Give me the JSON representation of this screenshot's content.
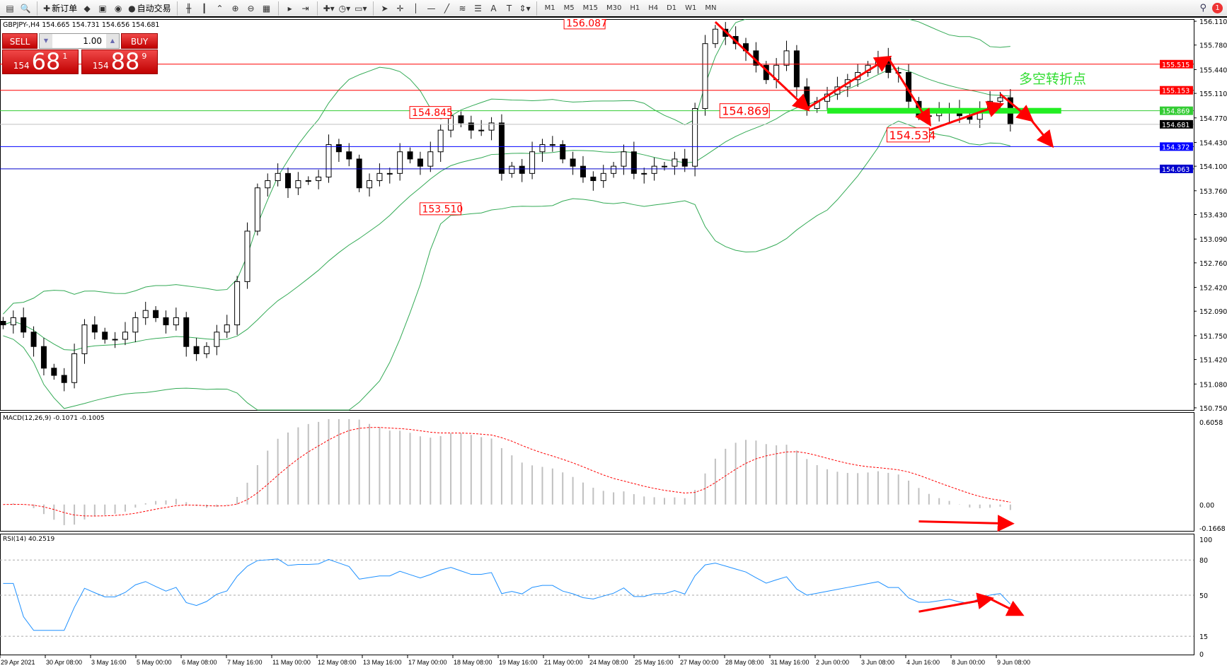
{
  "toolbar": {
    "new_order": "新订单",
    "auto_trading": "自动交易",
    "timeframes": [
      "M1",
      "M5",
      "M15",
      "M30",
      "H1",
      "H4",
      "D1",
      "W1",
      "MN"
    ],
    "icons": [
      "new-chart-icon",
      "zoom-chart-icon",
      "new-order-icon",
      "metaeditor-icon",
      "navigator-icon",
      "signals-icon",
      "auto-trading-icon",
      "bar-chart-icon",
      "candlestick-icon",
      "line-chart-icon",
      "zoom-in-icon",
      "zoom-out-icon",
      "tile-windows-icon",
      "autoscroll-icon",
      "chart-shift-icon",
      "indicators-icon",
      "periods-icon",
      "templates-icon",
      "cursor-icon",
      "crosshair-icon",
      "vertical-line-icon",
      "horizontal-line-icon",
      "trendline-icon",
      "fibonacci-icon",
      "channel-icon",
      "text-icon",
      "text-label-icon",
      "arrows-icon",
      "search-icon",
      "alerts-icon"
    ],
    "alert_count": "1"
  },
  "chart": {
    "title": "GBPJPY-,H4  154.665 154.731 154.656 154.681",
    "trade_panel": {
      "sell": "SELL",
      "buy": "BUY",
      "lot": "1.00",
      "sell_price": {
        "big": "154",
        "main": "68",
        "small": "1"
      },
      "buy_price": {
        "big": "154",
        "main": "88",
        "small": "9"
      }
    }
  },
  "chart_data": {
    "type": "candlestick",
    "symbol": "GBPJPY-",
    "timeframe": "H4",
    "y_ticks": [
      "156.110",
      "155.780",
      "155.440",
      "155.110",
      "154.770",
      "154.430",
      "154.100",
      "153.760",
      "153.430",
      "153.090",
      "152.760",
      "152.420",
      "152.090",
      "151.750",
      "151.420",
      "151.080",
      "150.750"
    ],
    "ylim": [
      150.72,
      156.14
    ],
    "closes": [
      151.9,
      152.0,
      151.8,
      151.6,
      151.3,
      151.2,
      151.1,
      151.5,
      151.9,
      151.8,
      151.7,
      151.7,
      151.8,
      152.0,
      152.1,
      152.0,
      151.9,
      152.0,
      151.6,
      151.5,
      151.6,
      151.8,
      151.9,
      152.5,
      153.2,
      153.8,
      153.9,
      154.0,
      153.8,
      153.9,
      153.9,
      153.95,
      154.4,
      154.3,
      154.2,
      153.8,
      153.9,
      154.0,
      154.0,
      154.3,
      154.2,
      154.1,
      154.3,
      154.6,
      154.8,
      154.7,
      154.6,
      154.6,
      154.7,
      154.0,
      154.1,
      154.0,
      154.3,
      154.4,
      154.4,
      154.2,
      154.1,
      153.95,
      153.9,
      154.0,
      154.1,
      154.3,
      154.0,
      154.0,
      154.1,
      154.1,
      154.2,
      154.1,
      154.9,
      155.8,
      156.0,
      155.9,
      155.8,
      155.7,
      155.5,
      155.3,
      155.5,
      155.7,
      155.2,
      154.9,
      155.0,
      155.1,
      155.2,
      155.3,
      155.4,
      155.5,
      155.6,
      155.4,
      155.4,
      155.0,
      154.8,
      154.8,
      154.85,
      154.9,
      154.8,
      154.75,
      154.9,
      155.0,
      155.05,
      154.681
    ],
    "x_labels": [
      "29 Apr 2021",
      "30 Apr 08:00",
      "3 May 16:00",
      "5 May 00:00",
      "6 May 08:00",
      "7 May 16:00",
      "11 May 00:00",
      "12 May 08:00",
      "13 May 16:00",
      "17 May 00:00",
      "18 May 08:00",
      "19 May 16:00",
      "21 May 00:00",
      "24 May 08:00",
      "25 May 16:00",
      "27 May 00:00",
      "28 May 08:00",
      "31 May 16:00",
      "2 Jun 00:00",
      "3 Jun 08:00",
      "4 Jun 16:00",
      "8 Jun 00:00",
      "9 Jun 08:00"
    ],
    "hlines": [
      {
        "value": "155.515",
        "color": "#ff0000"
      },
      {
        "value": "155.153",
        "color": "#ff0000"
      },
      {
        "value": "154.869",
        "color": "#33cc33"
      },
      {
        "value": "154.681",
        "color": "#000000",
        "line": "#c0c0c0"
      },
      {
        "value": "154.372",
        "color": "#0000ff"
      },
      {
        "value": "154.063",
        "color": "#0000cc"
      }
    ],
    "annotations": [
      "156.087",
      "154.845",
      "153.510",
      "154.869",
      "154.534"
    ],
    "note_text": "多空转折点",
    "bollinger_color": "#33aa55",
    "macd": {
      "label": "MACD(12,26,9) -0.1071 -0.1005",
      "ticks": [
        "0.6058",
        "0.00",
        "-0.1668"
      ],
      "signal_color": "#ff0000",
      "hist_color": "#c0c0c0"
    },
    "rsi": {
      "label": "RSI(14) 40.2519",
      "ticks": [
        "100",
        "80",
        "50",
        "15",
        "0"
      ],
      "color": "#1e90ff"
    },
    "arrow_color": "#ff0000"
  }
}
